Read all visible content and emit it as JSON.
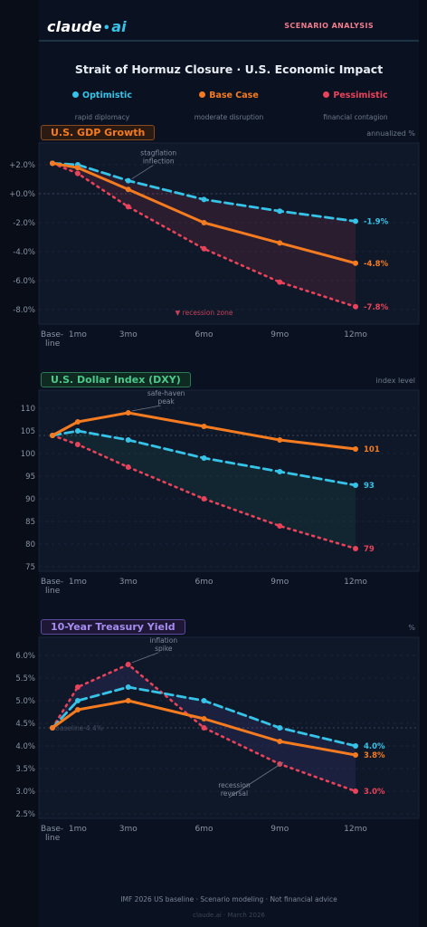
{
  "brand": {
    "name": "claude",
    "dot": "•",
    "suffix": "ai"
  },
  "header": {
    "tag": "SCENARIO ANALYSIS"
  },
  "title": "Strait of Hormuz Closure  ·  U.S. Economic Impact",
  "legend": [
    {
      "name": "Optimistic",
      "sub": "rapid diplomacy",
      "color": "#36c3e8"
    },
    {
      "name": "Base Case",
      "sub": "moderate disruption",
      "color": "#f47b20"
    },
    {
      "name": "Pessimistic",
      "sub": "financial contagion",
      "color": "#e8435a"
    }
  ],
  "colors": {
    "optimistic": "#36c3e8",
    "base": "#f47b20",
    "pessimistic": "#e8435a"
  },
  "chart_data": [
    {
      "type": "line",
      "title": "U.S. GDP Growth",
      "unit_label": "annualized %",
      "x": [
        "Base-\nline",
        "1mo",
        "3mo",
        "6mo",
        "9mo",
        "12mo"
      ],
      "x_pos": [
        0,
        1,
        3,
        6,
        9,
        12
      ],
      "ylim": [
        -9,
        3.5
      ],
      "yticks": [
        2,
        0,
        -2,
        -4,
        -6,
        -8
      ],
      "ytick_labels": [
        "+2.0%",
        "+0.0%",
        "-2.0%",
        "-4.0%",
        "-6.0%",
        "-8.0%"
      ],
      "reference_line": 0,
      "series": [
        {
          "name": "Optimistic",
          "key": "optimistic",
          "values": [
            2.1,
            2.0,
            0.9,
            -0.4,
            -1.2,
            -1.9
          ],
          "end_label": "-1.9%"
        },
        {
          "name": "Base Case",
          "key": "base",
          "values": [
            2.1,
            1.8,
            0.3,
            -2.0,
            -3.4,
            -4.8
          ],
          "end_label": "-4.8%"
        },
        {
          "name": "Pessimistic",
          "key": "pessimistic",
          "values": [
            2.1,
            1.4,
            -0.9,
            -3.8,
            -6.1,
            -7.8
          ],
          "end_label": "-7.8%"
        }
      ],
      "fill_between": [
        "optimistic",
        "pessimistic"
      ],
      "fill_color": "#e8435a",
      "annotations": [
        {
          "text": "stagflation\ninflection",
          "x": 3,
          "y": 0.9,
          "tx": 4.2,
          "ty": 2.4
        },
        {
          "text": "▼ recession zone",
          "x": 6,
          "y": -8.2,
          "plain": true,
          "color": "#c2415a"
        }
      ]
    },
    {
      "type": "line",
      "title": "U.S. Dollar Index (DXY)",
      "unit_label": "index level",
      "x": [
        "Base-\nline",
        "1mo",
        "3mo",
        "6mo",
        "9mo",
        "12mo"
      ],
      "x_pos": [
        0,
        1,
        3,
        6,
        9,
        12
      ],
      "ylim": [
        74,
        114
      ],
      "yticks": [
        110,
        105,
        100,
        95,
        90,
        85,
        80,
        75
      ],
      "ytick_labels": [
        "110",
        "105",
        "100",
        "95",
        "90",
        "85",
        "80",
        "75"
      ],
      "reference_line": 104,
      "series": [
        {
          "name": "Optimistic",
          "key": "optimistic",
          "values": [
            104,
            105,
            103,
            99,
            96,
            93
          ],
          "end_label": "93"
        },
        {
          "name": "Base Case",
          "key": "base",
          "values": [
            104,
            107,
            109,
            106,
            103,
            101
          ],
          "end_label": "101"
        },
        {
          "name": "Pessimistic",
          "key": "pessimistic",
          "values": [
            104,
            102,
            97,
            90,
            84,
            79
          ],
          "end_label": "79"
        }
      ],
      "fill_between": [
        "optimistic",
        "pessimistic"
      ],
      "fill_color": "#1f8a6a",
      "annotations": [
        {
          "text": "safe-haven\npeak",
          "x": 3,
          "y": 109,
          "tx": 4.5,
          "ty": 112
        }
      ]
    },
    {
      "type": "line",
      "title": "10-Year Treasury Yield",
      "unit_label": "%",
      "x": [
        "Base-\nline",
        "1mo",
        "3mo",
        "6mo",
        "9mo",
        "12mo"
      ],
      "x_pos": [
        0,
        1,
        3,
        6,
        9,
        12
      ],
      "ylim": [
        2.4,
        6.4
      ],
      "yticks": [
        6.0,
        5.5,
        5.0,
        4.5,
        4.0,
        3.5,
        3.0,
        2.5
      ],
      "ytick_labels": [
        "6.0%",
        "5.5%",
        "5.0%",
        "4.5%",
        "4.0%",
        "3.5%",
        "3.0%",
        "2.5%"
      ],
      "reference_line": 4.4,
      "reference_label": "baseline 4.4%",
      "series": [
        {
          "name": "Optimistic",
          "key": "optimistic",
          "values": [
            4.4,
            5.0,
            5.3,
            5.0,
            4.4,
            4.0
          ],
          "end_label": "4.0%"
        },
        {
          "name": "Base Case",
          "key": "base",
          "values": [
            4.4,
            4.8,
            5.0,
            4.6,
            4.1,
            3.8
          ],
          "end_label": "3.8%"
        },
        {
          "name": "Pessimistic",
          "key": "pessimistic",
          "values": [
            4.4,
            5.3,
            5.8,
            4.4,
            3.6,
            3.0
          ],
          "end_label": "3.0%"
        }
      ],
      "fill_between": [
        "optimistic",
        "pessimistic"
      ],
      "fill_color": "#6a5acd",
      "annotations": [
        {
          "text": "inflation\nspike",
          "x": 3,
          "y": 5.8,
          "tx": 4.4,
          "ty": 6.2
        },
        {
          "text": "recession\nreversal",
          "x": 9,
          "y": 3.6,
          "tx": 7.2,
          "ty": 3.0
        }
      ]
    }
  ],
  "footer": {
    "line1": "IMF 2026 US baseline  ·  Scenario modeling  ·  Not financial advice",
    "line2": "claude.ai  ·  March 2026"
  }
}
